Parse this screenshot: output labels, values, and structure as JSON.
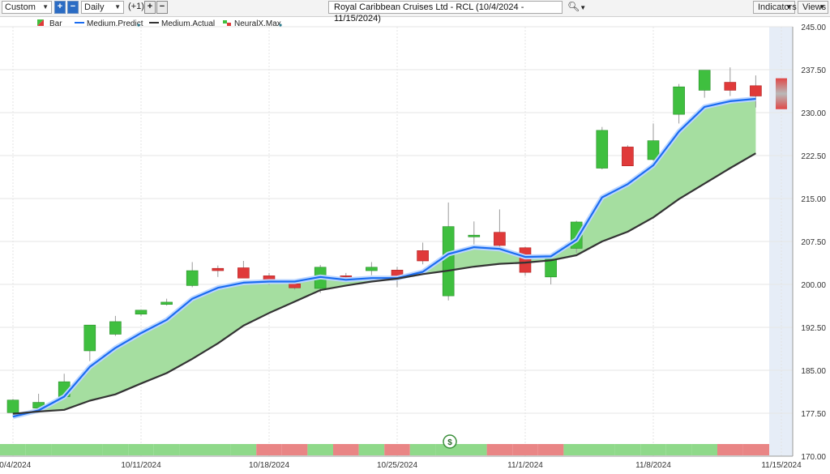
{
  "toolbar": {
    "range_select": "Custom",
    "interval_select": "Daily",
    "offset_label": "(+1)",
    "title": "Royal Caribbean Cruises Ltd - RCL (10/4/2024 - 11/15/2024)",
    "indicators_label": "Indicators",
    "views_label": "Views"
  },
  "colors": {
    "up_candle": "#3fbf3f",
    "down_candle": "#e03a3a",
    "predict_line": "#1a6cf0",
    "actual_line": "#333333",
    "fill_area": "#a5dea0",
    "strip_green": "#8fd98a",
    "strip_red": "#e98585",
    "future_zone": "#e6edf7"
  },
  "chart_data": {
    "type": "line",
    "legend": [
      "Bar",
      "Medium.Predict",
      "Medium.Actual",
      "NeuralX.Max"
    ],
    "legend_placement": "top-left",
    "grid": true,
    "ylim": [
      170,
      245
    ],
    "y_ticks": [
      "245.00",
      "237.50",
      "230.00",
      "222.50",
      "215.00",
      "207.50",
      "200.00",
      "192.50",
      "185.00",
      "177.50",
      "170.00"
    ],
    "x_ticks": [
      "10/4/2024",
      "10/11/2024",
      "10/18/2024",
      "10/25/2024",
      "11/1/2024",
      "11/8/2024",
      "11/15/2024"
    ],
    "candles": [
      {
        "open": 177.6,
        "high": 180.0,
        "low": 176.9,
        "close": 179.8
      },
      {
        "open": 178.4,
        "high": 180.9,
        "low": 178.0,
        "close": 179.4
      },
      {
        "open": 180.4,
        "high": 184.4,
        "low": 180.0,
        "close": 183.0
      },
      {
        "open": 188.4,
        "high": 192.9,
        "low": 186.6,
        "close": 192.9
      },
      {
        "open": 191.3,
        "high": 194.5,
        "low": 191.0,
        "close": 193.5
      },
      {
        "open": 194.8,
        "high": 195.5,
        "low": 194.5,
        "close": 195.5
      },
      {
        "open": 196.5,
        "high": 197.5,
        "low": 196.3,
        "close": 196.9
      },
      {
        "open": 199.8,
        "high": 203.9,
        "low": 199.5,
        "close": 202.4
      },
      {
        "open": 202.8,
        "high": 203.3,
        "low": 201.3,
        "close": 202.4
      },
      {
        "open": 202.9,
        "high": 204.1,
        "low": 201.3,
        "close": 201.1
      },
      {
        "open": 201.5,
        "high": 202.0,
        "low": 199.9,
        "close": 200.2
      },
      {
        "open": 200.1,
        "high": 200.3,
        "low": 199.1,
        "close": 199.4
      },
      {
        "open": 199.3,
        "high": 203.4,
        "low": 198.5,
        "close": 203.0
      },
      {
        "open": 201.5,
        "high": 202.0,
        "low": 200.4,
        "close": 201.4
      },
      {
        "open": 202.4,
        "high": 203.9,
        "low": 201.6,
        "close": 203.0
      },
      {
        "open": 202.5,
        "high": 203.1,
        "low": 199.5,
        "close": 201.3
      },
      {
        "open": 205.9,
        "high": 207.3,
        "low": 203.5,
        "close": 204.1
      },
      {
        "open": 198.0,
        "high": 214.3,
        "low": 197.2,
        "close": 210.1
      },
      {
        "open": 208.3,
        "high": 211.0,
        "low": 207.0,
        "close": 208.6
      },
      {
        "open": 209.1,
        "high": 213.1,
        "low": 206.6,
        "close": 206.8
      },
      {
        "open": 206.4,
        "high": 206.6,
        "low": 201.5,
        "close": 202.1
      },
      {
        "open": 201.3,
        "high": 204.5,
        "low": 200.0,
        "close": 204.4
      },
      {
        "open": 206.3,
        "high": 211.1,
        "low": 205.5,
        "close": 210.9
      },
      {
        "open": 220.3,
        "high": 227.5,
        "low": 220.1,
        "close": 226.9
      },
      {
        "open": 224.0,
        "high": 224.3,
        "low": 220.7,
        "close": 220.7
      },
      {
        "open": 221.8,
        "high": 228.1,
        "low": 221.6,
        "close": 225.1
      },
      {
        "open": 229.7,
        "high": 235.0,
        "low": 228.1,
        "close": 234.5
      },
      {
        "open": 233.9,
        "high": 237.4,
        "low": 232.6,
        "close": 237.4
      },
      {
        "open": 235.3,
        "high": 237.9,
        "low": 232.9,
        "close": 233.9
      },
      {
        "open": 234.7,
        "high": 236.5,
        "low": 230.9,
        "close": 232.9
      }
    ],
    "neuralx_max": {
      "open": 236.0,
      "high": 236.0,
      "low": 230.6,
      "close": 230.6
    },
    "series": [
      {
        "name": "Medium.Predict",
        "values": [
          176.9,
          178.0,
          180.4,
          185.6,
          188.9,
          191.5,
          193.8,
          197.5,
          199.4,
          200.3,
          200.5,
          200.5,
          201.3,
          200.8,
          201.1,
          201.1,
          202.2,
          205.3,
          206.5,
          206.2,
          204.8,
          204.9,
          207.8,
          215.2,
          217.5,
          220.8,
          226.7,
          231.0,
          232.0,
          232.4
        ]
      },
      {
        "name": "Medium.Actual",
        "values": [
          177.4,
          177.8,
          178.1,
          179.7,
          180.8,
          182.7,
          184.5,
          187.0,
          189.7,
          192.8,
          195.0,
          197.0,
          199.0,
          199.8,
          200.5,
          201.0,
          201.8,
          202.4,
          203.1,
          203.6,
          203.8,
          204.2,
          205.1,
          207.5,
          209.2,
          211.7,
          214.9,
          217.6,
          220.3,
          222.9
        ]
      }
    ],
    "signal_strip": [
      "green",
      "green",
      "green",
      "green",
      "green",
      "green",
      "green",
      "green",
      "green",
      "green",
      "red",
      "red",
      "green",
      "red",
      "green",
      "red",
      "green",
      "green",
      "green",
      "red",
      "red",
      "red",
      "green",
      "green",
      "green",
      "green",
      "green",
      "green",
      "red",
      "red"
    ]
  }
}
